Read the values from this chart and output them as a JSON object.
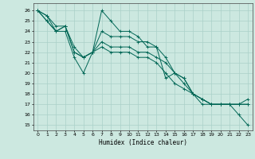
{
  "xlabel": "Humidex (Indice chaleur)",
  "bg_color": "#cce8e0",
  "grid_color": "#aad0c8",
  "line_color": "#006655",
  "xlim": [
    -0.5,
    23.5
  ],
  "ylim": [
    14.5,
    26.7
  ],
  "xticks": [
    0,
    1,
    2,
    3,
    4,
    5,
    6,
    7,
    8,
    9,
    10,
    11,
    12,
    13,
    14,
    15,
    16,
    17,
    18,
    19,
    20,
    21,
    22,
    23
  ],
  "yticks": [
    15,
    16,
    17,
    18,
    19,
    20,
    21,
    22,
    23,
    24,
    25,
    26
  ],
  "series": [
    [
      26,
      25,
      24,
      24,
      21.5,
      20,
      22,
      26,
      25,
      24,
      24,
      23.5,
      22.5,
      22.5,
      19.5,
      20,
      19.5,
      18,
      17,
      17,
      17,
      17,
      17,
      17
    ],
    [
      26,
      25,
      24,
      24.5,
      22,
      21.5,
      22,
      24,
      23.5,
      23.5,
      23.5,
      23,
      23,
      22.5,
      21.5,
      20,
      19.5,
      18,
      17.5,
      17,
      17,
      17,
      17,
      17.5
    ],
    [
      26,
      25.5,
      24,
      24.5,
      22,
      21.5,
      22,
      23,
      22.5,
      22.5,
      22.5,
      22,
      22,
      21.5,
      21,
      20,
      19,
      18,
      17.5,
      17,
      17,
      17,
      17,
      17
    ],
    [
      26,
      25.5,
      24.5,
      24.5,
      22.5,
      21.5,
      22,
      22.5,
      22,
      22,
      22,
      21.5,
      21.5,
      21,
      20,
      19,
      18.5,
      18,
      17.5,
      17,
      17,
      17,
      16,
      15
    ]
  ]
}
